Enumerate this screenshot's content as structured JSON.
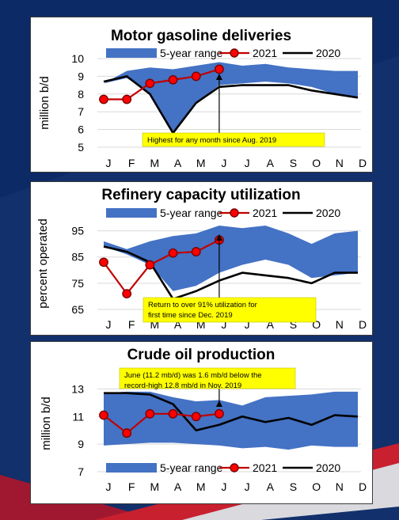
{
  "colors": {
    "band": "#4472C4",
    "series2021": "#C00000",
    "series2021_fill": "#FF0000",
    "series2020": "#000000",
    "callout": "#FFFF00",
    "background": "#12306b"
  },
  "chart_data": [
    {
      "type": "line",
      "title": "Motor gasoline deliveries",
      "ylabel": "million b/d",
      "xlabel": "",
      "categories": [
        "J",
        "F",
        "M",
        "A",
        "M",
        "J",
        "J",
        "A",
        "S",
        "O",
        "N",
        "D"
      ],
      "ylim": [
        5,
        10
      ],
      "yticks": [
        5,
        6,
        7,
        8,
        9,
        10
      ],
      "grid": true,
      "legend": "top",
      "band": {
        "name": "5-year range",
        "low": [
          8.6,
          8.9,
          8.0,
          5.9,
          7.5,
          8.5,
          8.6,
          8.7,
          8.6,
          8.4,
          8.0,
          7.8
        ],
        "high": [
          8.6,
          9.3,
          9.5,
          9.4,
          9.6,
          9.8,
          9.6,
          9.7,
          9.5,
          9.4,
          9.3,
          9.3
        ]
      },
      "series": [
        {
          "name": "2021",
          "values": [
            7.7,
            7.7,
            8.6,
            8.8,
            9.0,
            9.4,
            null,
            null,
            null,
            null,
            null,
            null
          ]
        },
        {
          "name": "2020",
          "values": [
            8.7,
            9.0,
            8.0,
            5.8,
            7.5,
            8.4,
            8.5,
            8.5,
            8.5,
            8.2,
            8.0,
            7.8
          ]
        }
      ],
      "annotation": {
        "text": "Highest for any month since Aug. 2019",
        "month_index": 5
      }
    },
    {
      "type": "line",
      "title": "Refinery capacity utilization",
      "ylabel": "percent operated",
      "xlabel": "",
      "categories": [
        "J",
        "F",
        "M",
        "A",
        "M",
        "J",
        "J",
        "A",
        "S",
        "O",
        "N",
        "D"
      ],
      "ylim": [
        65,
        100
      ],
      "yticks": [
        65,
        75,
        85,
        95
      ],
      "grid": true,
      "legend": "top",
      "band": {
        "name": "5-year range",
        "low": [
          89,
          86,
          82,
          72,
          74,
          79,
          82,
          84,
          82,
          77,
          78,
          79
        ],
        "high": [
          91,
          88,
          91,
          93,
          94,
          97,
          96,
          97,
          94,
          90,
          94,
          95
        ]
      },
      "series": [
        {
          "name": "2021",
          "values": [
            83,
            71,
            82,
            86.5,
            87,
            91.5,
            null,
            null,
            null,
            null,
            null,
            null
          ]
        },
        {
          "name": "2020",
          "values": [
            89,
            87,
            83,
            69,
            72,
            76,
            79,
            78,
            77,
            75,
            79,
            79
          ]
        }
      ],
      "annotation": {
        "text": "Return to over 91% utilization for first time since Dec. 2019",
        "month_index": 5
      }
    },
    {
      "type": "line",
      "title": "Crude oil production",
      "ylabel": "million b/d",
      "xlabel": "",
      "categories": [
        "J",
        "F",
        "M",
        "A",
        "M",
        "J",
        "J",
        "A",
        "S",
        "O",
        "N",
        "D"
      ],
      "ylim": [
        7,
        14
      ],
      "yticks": [
        7,
        9,
        11,
        13
      ],
      "grid": true,
      "legend": "bottom",
      "band": {
        "name": "5-year range",
        "low": [
          8.9,
          9.0,
          9.1,
          9.1,
          9.0,
          8.9,
          8.7,
          8.8,
          8.6,
          8.9,
          8.8,
          8.8
        ],
        "high": [
          12.7,
          12.8,
          12.8,
          12.4,
          12.1,
          12.2,
          11.8,
          12.4,
          12.5,
          12.6,
          12.8,
          12.8
        ]
      },
      "series": [
        {
          "name": "2021",
          "values": [
            11.1,
            9.8,
            11.2,
            11.2,
            11.0,
            11.2,
            null,
            null,
            null,
            null,
            null,
            null
          ]
        },
        {
          "name": "2020",
          "values": [
            12.7,
            12.7,
            12.6,
            11.9,
            10.0,
            10.4,
            11.0,
            10.6,
            10.9,
            10.4,
            11.1,
            11.0
          ]
        }
      ],
      "annotation": {
        "text": "June (11.2 mb/d) was 1.6 mb/d below the record-high 12.8 mb/d in Nov. 2019",
        "month_index": 5
      }
    }
  ]
}
